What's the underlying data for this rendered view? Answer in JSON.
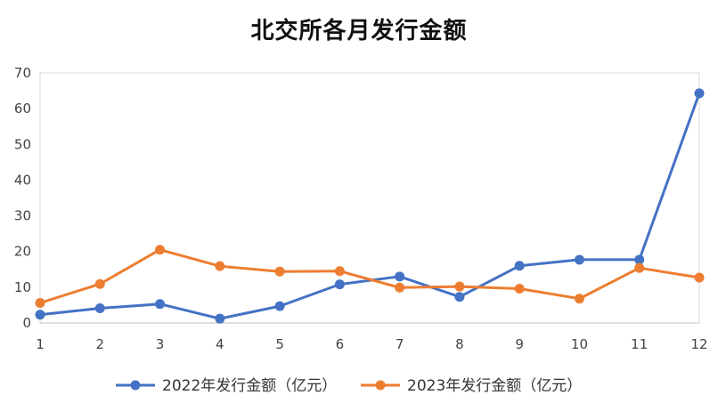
{
  "chart_data": {
    "type": "line",
    "title": "北交所各月发行金额",
    "categories": [
      "1",
      "2",
      "3",
      "4",
      "5",
      "6",
      "7",
      "8",
      "9",
      "10",
      "11",
      "12"
    ],
    "series": [
      {
        "name": "2022年发行金额（亿元）",
        "color": "#4472C4",
        "values": [
          2.3,
          4.1,
          5.3,
          1.2,
          4.7,
          10.8,
          13.0,
          7.3,
          16.0,
          17.7,
          17.7,
          64.3
        ]
      },
      {
        "name": "2023年发行金额（亿元）",
        "color": "#ED7D31",
        "values": [
          5.6,
          10.9,
          20.5,
          15.9,
          14.4,
          14.5,
          9.9,
          10.2,
          9.6,
          6.8,
          15.4,
          12.7
        ]
      }
    ],
    "ylim": [
      0,
      70
    ],
    "yticks": [
      0,
      10,
      20,
      30,
      40,
      50,
      60,
      70
    ],
    "xlabel": "",
    "ylabel": "",
    "grid": false,
    "legend": "bottom"
  }
}
